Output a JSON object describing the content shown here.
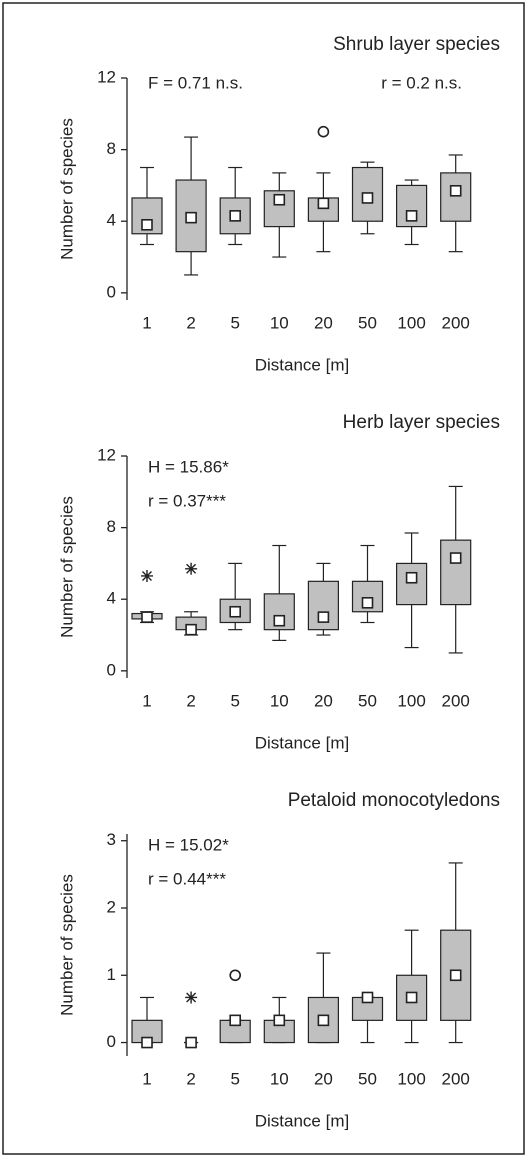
{
  "charts": [
    {
      "chart_data": {
        "type": "box",
        "title": "Shrub layer species",
        "ylabel": "Number of species",
        "xlabel": "Distance [m]",
        "annotations": [
          "F = 0.71 n.s.",
          "r = 0.2 n.s."
        ],
        "categories": [
          "1",
          "2",
          "5",
          "10",
          "20",
          "50",
          "100",
          "200"
        ],
        "low": [
          2.7,
          1.0,
          2.7,
          2.0,
          2.3,
          3.3,
          2.7,
          2.3
        ],
        "q1": [
          3.3,
          2.3,
          3.3,
          3.7,
          4.0,
          4.0,
          3.7,
          4.0
        ],
        "q3": [
          5.3,
          6.3,
          5.3,
          5.7,
          5.3,
          7.0,
          6.0,
          6.7
        ],
        "high": [
          7.0,
          8.7,
          7.0,
          6.7,
          6.7,
          7.3,
          6.3,
          7.7
        ],
        "mean": [
          3.8,
          4.2,
          4.3,
          5.2,
          5.0,
          5.3,
          4.3,
          5.7
        ],
        "outliers": [
          [],
          [],
          [],
          [],
          [
            9.0
          ],
          [],
          [],
          []
        ],
        "extremes": [
          [],
          [],
          [],
          [],
          [],
          [],
          [],
          []
        ],
        "ylim": [
          -0.4,
          12
        ],
        "yticks": [
          0,
          4,
          8,
          12
        ],
        "color": "#c0c0c0"
      }
    },
    {
      "chart_data": {
        "type": "box",
        "title": "Herb layer species",
        "ylabel": "Number of species",
        "xlabel": "Distance [m]",
        "annotations": [
          "H = 15.86*",
          "r = 0.37***"
        ],
        "categories": [
          "1",
          "2",
          "5",
          "10",
          "20",
          "50",
          "100",
          "200"
        ],
        "low": [
          2.7,
          2.0,
          2.3,
          1.7,
          2.0,
          2.7,
          1.3,
          1.0
        ],
        "q1": [
          2.9,
          2.3,
          2.7,
          2.3,
          2.3,
          3.3,
          3.7,
          3.7
        ],
        "q3": [
          3.2,
          3.0,
          4.0,
          4.3,
          5.0,
          5.0,
          6.0,
          7.3
        ],
        "high": [
          3.3,
          3.3,
          6.0,
          7.0,
          6.0,
          7.0,
          7.7,
          10.3
        ],
        "mean": [
          3.0,
          2.3,
          3.3,
          2.8,
          3.0,
          3.8,
          5.2,
          6.3
        ],
        "outliers": [
          [],
          [],
          [],
          [],
          [],
          [],
          [],
          []
        ],
        "extremes": [
          [
            5.3
          ],
          [
            5.7
          ],
          [],
          [],
          [],
          [],
          [],
          []
        ],
        "ylim": [
          -0.4,
          12
        ],
        "yticks": [
          0,
          4,
          8,
          12
        ],
        "color": "#c0c0c0"
      }
    },
    {
      "chart_data": {
        "type": "box",
        "title": "Petaloid monocotyledons",
        "ylabel": "Number of species",
        "xlabel": "Distance [m]",
        "annotations": [
          "H = 15.02*",
          "r = 0.44***"
        ],
        "categories": [
          "1",
          "2",
          "5",
          "10",
          "20",
          "50",
          "100",
          "200"
        ],
        "low": [
          0,
          0,
          0,
          0,
          0,
          0,
          0,
          0
        ],
        "q1": [
          0,
          0,
          0,
          0,
          0,
          0.33,
          0.33,
          0.33
        ],
        "q3": [
          0.33,
          0,
          0.33,
          0.33,
          0.67,
          0.67,
          1.0,
          1.67
        ],
        "high": [
          0.67,
          0,
          0.33,
          0.67,
          1.33,
          0.67,
          1.67,
          2.67
        ],
        "mean": [
          0,
          0,
          0.33,
          0.33,
          0.33,
          0.67,
          0.67,
          1.0
        ],
        "outliers": [
          [],
          [],
          [
            1.0
          ],
          [],
          [],
          [],
          [],
          []
        ],
        "extremes": [
          [],
          [
            0.67
          ],
          [],
          [],
          [],
          [],
          [],
          []
        ],
        "ylim": [
          -0.2,
          3.1
        ],
        "yticks": [
          0,
          1,
          2,
          3
        ],
        "color": "#c0c0c0"
      }
    }
  ]
}
